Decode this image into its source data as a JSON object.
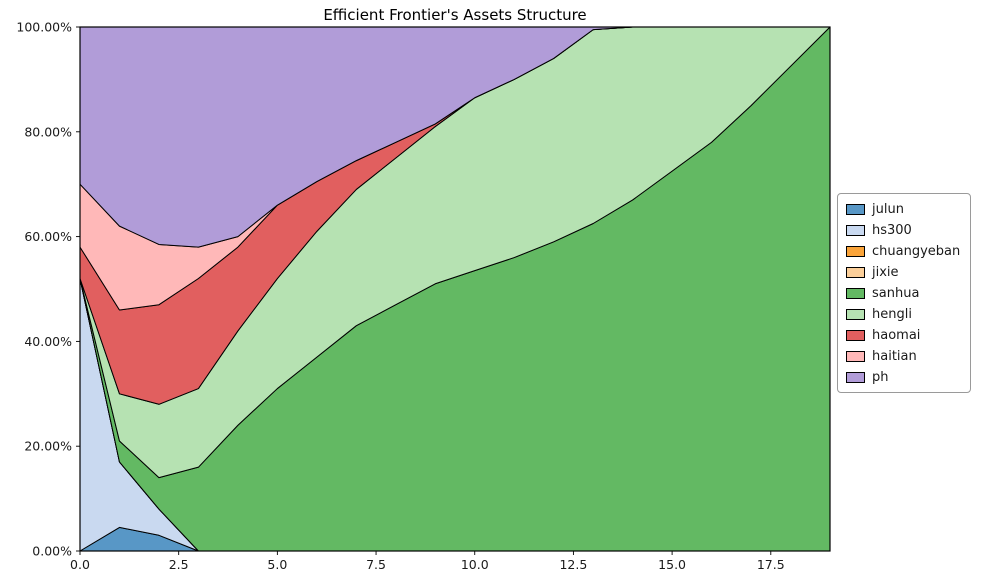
{
  "chart_data": {
    "type": "area",
    "title": "Efficient Frontier's Assets Structure",
    "xlabel": "",
    "ylabel": "",
    "xlim": [
      0,
      19
    ],
    "ylim": [
      0,
      100
    ],
    "grid": true,
    "legend_position": "center right outside",
    "x": [
      0,
      1,
      2,
      3,
      4,
      5,
      6,
      7,
      8,
      9,
      10,
      11,
      12,
      13,
      14,
      15,
      16,
      17,
      18,
      19
    ],
    "xticks": {
      "values": [
        0,
        2.5,
        5,
        7.5,
        10,
        12.5,
        15,
        17.5
      ],
      "labels": [
        "0.0",
        "2.5",
        "5.0",
        "7.5",
        "10.0",
        "12.5",
        "15.0",
        "17.5"
      ]
    },
    "yticks": {
      "values": [
        0,
        20,
        40,
        60,
        80,
        100
      ],
      "labels": [
        "0.00%",
        "20.00%",
        "40.00%",
        "60.00%",
        "80.00%",
        "100.00%"
      ]
    },
    "edge_color": "#000000",
    "series": [
      {
        "name": "julun",
        "color": "#5897c6",
        "values": [
          0,
          4.5,
          3,
          0,
          0,
          0,
          0,
          0,
          0,
          0,
          0,
          0,
          0,
          0,
          0,
          0,
          0,
          0,
          0,
          0
        ]
      },
      {
        "name": "hs300",
        "color": "#c9d9f0",
        "values": [
          52,
          12.5,
          5,
          0,
          0,
          0,
          0,
          0,
          0,
          0,
          0,
          0,
          0,
          0,
          0,
          0,
          0,
          0,
          0,
          0
        ]
      },
      {
        "name": "chuangyeban",
        "color": "#faa43a",
        "values": [
          0,
          0,
          0,
          0,
          0,
          0,
          0,
          0,
          0,
          0,
          0,
          0,
          0,
          0,
          0,
          0,
          0,
          0,
          0,
          0
        ]
      },
      {
        "name": "jixie",
        "color": "#fbcf9a",
        "values": [
          0,
          0,
          0,
          0,
          0,
          0,
          0,
          0,
          0,
          0,
          0,
          0,
          0,
          0,
          0,
          0,
          0,
          0,
          0,
          0
        ]
      },
      {
        "name": "sanhua",
        "color": "#63b963",
        "values": [
          0,
          4,
          6,
          16,
          24,
          31,
          37,
          43,
          47,
          51,
          53.5,
          56,
          59,
          62.5,
          67,
          72.5,
          78,
          85,
          92.5,
          100
        ]
      },
      {
        "name": "hengli",
        "color": "#b6e2b2",
        "values": [
          0,
          9,
          14,
          15,
          18,
          21,
          24,
          26,
          28,
          30,
          33,
          34,
          35,
          37,
          33,
          27.5,
          22,
          15,
          7.5,
          0
        ]
      },
      {
        "name": "haomai",
        "color": "#e15f5f",
        "values": [
          6,
          16,
          19,
          21,
          16,
          14,
          9.5,
          5.5,
          3,
          0.5,
          0,
          0,
          0,
          0,
          0,
          0,
          0,
          0,
          0,
          0
        ]
      },
      {
        "name": "haitian",
        "color": "#ffb8b8",
        "values": [
          12,
          16,
          11.5,
          6,
          2,
          0,
          0,
          0,
          0,
          0,
          0,
          0,
          0,
          0,
          0,
          0,
          0,
          0,
          0,
          0
        ]
      },
      {
        "name": "ph",
        "color": "#b19cd8",
        "values": [
          30,
          38,
          41.5,
          42,
          40,
          34,
          29.5,
          25.5,
          22,
          18.5,
          13.5,
          10,
          6,
          0.5,
          0,
          0,
          0,
          0,
          0,
          0
        ]
      }
    ]
  }
}
